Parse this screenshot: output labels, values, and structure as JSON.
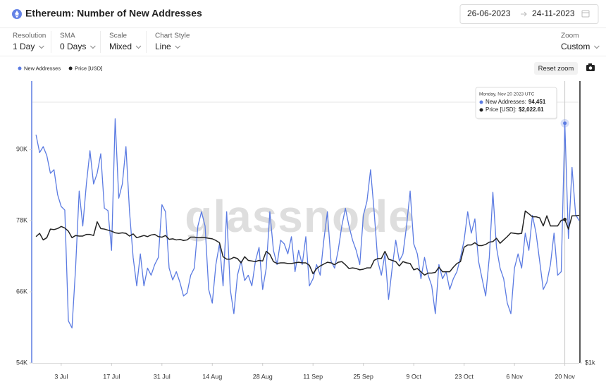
{
  "header": {
    "title": "Ethereum: Number of New Addresses",
    "date_from": "26-06-2023",
    "date_to": "24-11-2023"
  },
  "controls": [
    {
      "label": "Resolution",
      "value": "1 Day"
    },
    {
      "label": "SMA",
      "value": "0 Days"
    },
    {
      "label": "Scale",
      "value": "Mixed"
    },
    {
      "label": "Chart Style",
      "value": "Line"
    }
  ],
  "zoom": {
    "label": "Zoom",
    "value": "Custom"
  },
  "reset_zoom": "Reset zoom",
  "watermark": "glassnode",
  "tooltip": {
    "date": "Monday, Nov 20 2023 UTC",
    "items": [
      {
        "label": "New Addresses:",
        "value": "94,451"
      },
      {
        "label": "Price [USD]:",
        "value": "$2,022.61"
      }
    ]
  },
  "chart_data": {
    "type": "line",
    "x": [
      "2023-06-26",
      "2023-06-27",
      "2023-06-28",
      "2023-06-29",
      "2023-06-30",
      "2023-07-01",
      "2023-07-02",
      "2023-07-03",
      "2023-07-04",
      "2023-07-05",
      "2023-07-06",
      "2023-07-07",
      "2023-07-08",
      "2023-07-09",
      "2023-07-10",
      "2023-07-11",
      "2023-07-12",
      "2023-07-13",
      "2023-07-14",
      "2023-07-15",
      "2023-07-16",
      "2023-07-17",
      "2023-07-18",
      "2023-07-19",
      "2023-07-20",
      "2023-07-21",
      "2023-07-22",
      "2023-07-23",
      "2023-07-24",
      "2023-07-25",
      "2023-07-26",
      "2023-07-27",
      "2023-07-28",
      "2023-07-29",
      "2023-07-30",
      "2023-07-31",
      "2023-08-01",
      "2023-08-02",
      "2023-08-03",
      "2023-08-04",
      "2023-08-05",
      "2023-08-06",
      "2023-08-07",
      "2023-08-08",
      "2023-08-09",
      "2023-08-10",
      "2023-08-11",
      "2023-08-12",
      "2023-08-13",
      "2023-08-14",
      "2023-08-15",
      "2023-08-16",
      "2023-08-17",
      "2023-08-18",
      "2023-08-19",
      "2023-08-20",
      "2023-08-21",
      "2023-08-22",
      "2023-08-23",
      "2023-08-24",
      "2023-08-25",
      "2023-08-26",
      "2023-08-27",
      "2023-08-28",
      "2023-08-29",
      "2023-08-30",
      "2023-08-31",
      "2023-09-01",
      "2023-09-02",
      "2023-09-03",
      "2023-09-04",
      "2023-09-05",
      "2023-09-06",
      "2023-09-07",
      "2023-09-08",
      "2023-09-09",
      "2023-09-10",
      "2023-09-11",
      "2023-09-12",
      "2023-09-13",
      "2023-09-14",
      "2023-09-15",
      "2023-09-16",
      "2023-09-17",
      "2023-09-18",
      "2023-09-19",
      "2023-09-20",
      "2023-09-21",
      "2023-09-22",
      "2023-09-23",
      "2023-09-24",
      "2023-09-25",
      "2023-09-26",
      "2023-09-27",
      "2023-09-28",
      "2023-09-29",
      "2023-09-30",
      "2023-10-01",
      "2023-10-02",
      "2023-10-03",
      "2023-10-04",
      "2023-10-05",
      "2023-10-06",
      "2023-10-07",
      "2023-10-08",
      "2023-10-09",
      "2023-10-10",
      "2023-10-11",
      "2023-10-12",
      "2023-10-13",
      "2023-10-14",
      "2023-10-15",
      "2023-10-16",
      "2023-10-17",
      "2023-10-18",
      "2023-10-19",
      "2023-10-20",
      "2023-10-21",
      "2023-10-22",
      "2023-10-23",
      "2023-10-24",
      "2023-10-25",
      "2023-10-26",
      "2023-10-27",
      "2023-10-28",
      "2023-10-29",
      "2023-10-30",
      "2023-10-31",
      "2023-11-01",
      "2023-11-02",
      "2023-11-03",
      "2023-11-04",
      "2023-11-05",
      "2023-11-06",
      "2023-11-07",
      "2023-11-08",
      "2023-11-09",
      "2023-11-10",
      "2023-11-11",
      "2023-11-12",
      "2023-11-13",
      "2023-11-14",
      "2023-11-15",
      "2023-11-16",
      "2023-11-17",
      "2023-11-18",
      "2023-11-19",
      "2023-11-20",
      "2023-11-21",
      "2023-11-22",
      "2023-11-23",
      "2023-11-24"
    ],
    "series": [
      {
        "name": "New Addresses",
        "color": "#5b7be2",
        "values": [
          92500,
          89500,
          90500,
          89000,
          86000,
          86600,
          82400,
          80400,
          79800,
          61100,
          59900,
          70000,
          83000,
          77100,
          84200,
          89800,
          84200,
          86000,
          89300,
          80100,
          79700,
          73000,
          95200,
          81800,
          84200,
          90500,
          79500,
          71800,
          67000,
          72400,
          67000,
          70000,
          68800,
          70600,
          71800,
          80700,
          79500,
          70000,
          68000,
          69400,
          67600,
          65300,
          65800,
          68800,
          70000,
          77100,
          79500,
          77100,
          66400,
          64100,
          70600,
          74100,
          67000,
          79500,
          66400,
          62300,
          68800,
          71200,
          67900,
          68800,
          67000,
          71200,
          73500,
          66400,
          70000,
          79500,
          73000,
          70600,
          74700,
          74100,
          72400,
          75300,
          69400,
          73000,
          70600,
          75300,
          67000,
          68200,
          70600,
          68800,
          74700,
          79500,
          71200,
          70000,
          73000,
          77100,
          80100,
          77100,
          74700,
          73000,
          70600,
          78900,
          81300,
          86600,
          79500,
          71200,
          68800,
          72400,
          64700,
          70000,
          74700,
          71200,
          72400,
          77100,
          83000,
          74100,
          72400,
          68200,
          71800,
          68800,
          67000,
          62300,
          70600,
          68200,
          69400,
          66400,
          68200,
          69400,
          71800,
          74700,
          79500,
          75900,
          78300,
          71200,
          68200,
          65300,
          71800,
          82800,
          73500,
          70000,
          68200,
          64100,
          62300,
          70000,
          72400,
          70000,
          75900,
          73000,
          78900,
          75900,
          71200,
          66400,
          67600,
          70600,
          75900,
          68800,
          69400,
          94451,
          75000,
          87000,
          79000,
          78000
        ]
      },
      {
        "name": "Price [USD]",
        "color": "#222222",
        "axis": "y2",
        "values": [
          1860,
          1890,
          1830,
          1850,
          1930,
          1925,
          1935,
          1955,
          1940,
          1910,
          1850,
          1870,
          1865,
          1865,
          1880,
          1880,
          1870,
          2000,
          1935,
          1930,
          1920,
          1910,
          1895,
          1890,
          1895,
          1890,
          1865,
          1885,
          1850,
          1860,
          1870,
          1860,
          1875,
          1880,
          1860,
          1855,
          1870,
          1835,
          1840,
          1830,
          1835,
          1825,
          1830,
          1855,
          1855,
          1850,
          1850,
          1850,
          1845,
          1840,
          1825,
          1805,
          1685,
          1665,
          1665,
          1680,
          1670,
          1635,
          1685,
          1655,
          1650,
          1645,
          1655,
          1650,
          1730,
          1705,
          1645,
          1630,
          1635,
          1635,
          1630,
          1630,
          1635,
          1640,
          1635,
          1635,
          1615,
          1550,
          1590,
          1610,
          1625,
          1640,
          1635,
          1620,
          1640,
          1645,
          1620,
          1590,
          1595,
          1590,
          1580,
          1585,
          1595,
          1595,
          1655,
          1670,
          1670,
          1730,
          1665,
          1655,
          1645,
          1610,
          1645,
          1635,
          1630,
          1580,
          1590,
          1565,
          1540,
          1555,
          1555,
          1560,
          1600,
          1565,
          1565,
          1565,
          1600,
          1630,
          1645,
          1765,
          1785,
          1785,
          1805,
          1780,
          1780,
          1790,
          1810,
          1815,
          1845,
          1800,
          1830,
          1860,
          1895,
          1890,
          1885,
          1890,
          2110,
          2080,
          2050,
          2050,
          2040,
          1960,
          2060,
          1960,
          1960,
          1960,
          2015,
          2022.61,
          1930,
          2060,
          2060,
          2065
        ]
      }
    ],
    "xlim": [
      "2023-06-25",
      "2023-11-24"
    ],
    "xticks": [
      {
        "value": "2023-07-03",
        "label": "3 Jul"
      },
      {
        "value": "2023-07-17",
        "label": "17 Jul"
      },
      {
        "value": "2023-07-31",
        "label": "31 Jul"
      },
      {
        "value": "2023-08-14",
        "label": "14 Aug"
      },
      {
        "value": "2023-08-28",
        "label": "28 Aug"
      },
      {
        "value": "2023-09-11",
        "label": "11 Sep"
      },
      {
        "value": "2023-09-25",
        "label": "25 Sep"
      },
      {
        "value": "2023-10-09",
        "label": "9 Oct"
      },
      {
        "value": "2023-10-23",
        "label": "23 Oct"
      },
      {
        "value": "2023-11-06",
        "label": "6 Nov"
      },
      {
        "value": "2023-11-20",
        "label": "20 Nov"
      }
    ],
    "ylim": [
      54000,
      98000
    ],
    "yticks": [
      {
        "value": 54000,
        "label": "54K"
      },
      {
        "value": 66000,
        "label": "66K"
      },
      {
        "value": 78000,
        "label": "78K"
      },
      {
        "value": 90000,
        "label": "90K"
      }
    ],
    "y2lim": [
      1000,
      3600
    ],
    "y2ticks": [
      {
        "value": 1000,
        "label": "$1k"
      }
    ],
    "y2scale": "log",
    "highlight": 147
  }
}
